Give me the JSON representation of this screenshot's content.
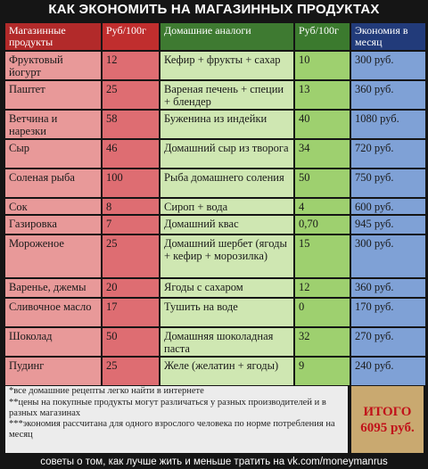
{
  "title": "КАК ЭКОНОМИТЬ НА МАГАЗИННЫХ ПРОДУКТАХ",
  "headers": {
    "store": "Магазинные продукты",
    "store_price": "Руб/100г",
    "home": "Домашние аналоги",
    "home_price": "Руб/100г",
    "savings": "Экономия в месяц"
  },
  "rows": [
    {
      "store": "Фруктовый йогурт",
      "store_price": "12",
      "home": "Кефир + фрукты + сахар",
      "home_price": "10",
      "savings": "300 руб."
    },
    {
      "store": "Паштет",
      "store_price": "25",
      "home": "Вареная печень + специи + блендер",
      "home_price": "13",
      "savings": "360 руб."
    },
    {
      "store": "Ветчина и нарезки",
      "store_price": "58",
      "home": "Буженина из индейки",
      "home_price": "40",
      "savings": "1080 руб."
    },
    {
      "store": "Сыр",
      "store_price": "46",
      "home": "Домашний сыр из творога",
      "home_price": "34",
      "savings": "720 руб."
    },
    {
      "store": "Соленая рыба",
      "store_price": "100",
      "home": "Рыба домашнего соления",
      "home_price": "50",
      "savings": "750 руб."
    },
    {
      "store": "Сок",
      "store_price": "8",
      "home": "Сироп + вода",
      "home_price": "4",
      "savings": "600 руб."
    },
    {
      "store": "Газировка",
      "store_price": "7",
      "home": "Домашний квас",
      "home_price": "0,70",
      "savings": "945 руб."
    },
    {
      "store": "Мороженое",
      "store_price": "25",
      "home": "Домашний шербет (ягоды + кефир + морозилка)",
      "home_price": "15",
      "savings": "300 руб."
    },
    {
      "store": "Варенье, джемы",
      "store_price": "20",
      "home": "Ягоды с сахаром",
      "home_price": "12",
      "savings": "360 руб."
    },
    {
      "store": "Сливочное масло",
      "store_price": "17",
      "home": "Тушить на воде",
      "home_price": "0",
      "savings": "170 руб."
    },
    {
      "store": "Шоколад",
      "store_price": "50",
      "home": "Домашняя шоколадная паста",
      "home_price": "32",
      "savings": "270 руб."
    },
    {
      "store": "Пудинг",
      "store_price": "25",
      "home": "Желе (желатин + ягоды)",
      "home_price": "9",
      "savings": "240 руб."
    }
  ],
  "notes": [
    "*все домашние рецепты легко найти в интернете",
    "**цены на покупные продукты могут различаться у разных производителей и в разных магазинах",
    "***экономия рассчитана для одного взрослого человека по норме потребления на месяц"
  ],
  "total": {
    "label": "ИТОГО",
    "value": "6095 руб."
  },
  "footer": "советы о том, как лучше жить и меньше тратить на vk.com/moneymanrus"
}
